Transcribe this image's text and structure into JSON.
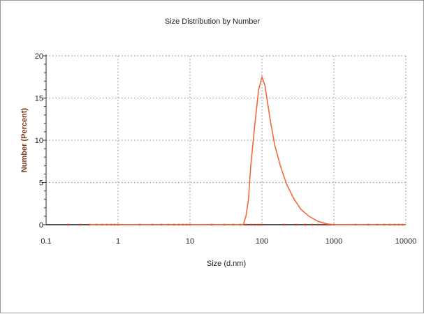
{
  "chart_data": {
    "type": "line",
    "title": "Size Distribution by Number",
    "xlabel": "Size (d.nm)",
    "ylabel": "Number (Percent)",
    "x_scale": "log",
    "xlim": [
      0.1,
      10000
    ],
    "ylim": [
      0,
      20
    ],
    "x_ticks": [
      0.1,
      1,
      10,
      100,
      1000,
      10000
    ],
    "x_tick_labels": [
      "0.1",
      "1",
      "10",
      "100",
      "1000",
      "10000"
    ],
    "y_ticks": [
      0,
      5,
      10,
      15,
      20
    ],
    "y_tick_labels": [
      "0",
      "5",
      "10",
      "15",
      "20"
    ],
    "grid": true,
    "colors": {
      "series": "#f26a3c",
      "baseline": "#1a1a1a",
      "grid": "#9a9a9a"
    },
    "series": [
      {
        "x": [
          0.4,
          55,
          60,
          65,
          70,
          80,
          90,
          100,
          110,
          130,
          150,
          180,
          220,
          280,
          350,
          450,
          600,
          800,
          1000,
          1200,
          10000
        ],
        "y": [
          0,
          0,
          1,
          3,
          7,
          12,
          16,
          17.5,
          16.5,
          12.5,
          9.5,
          7,
          4.8,
          3,
          1.8,
          1,
          0.4,
          0.1,
          0,
          0,
          0
        ]
      }
    ]
  }
}
